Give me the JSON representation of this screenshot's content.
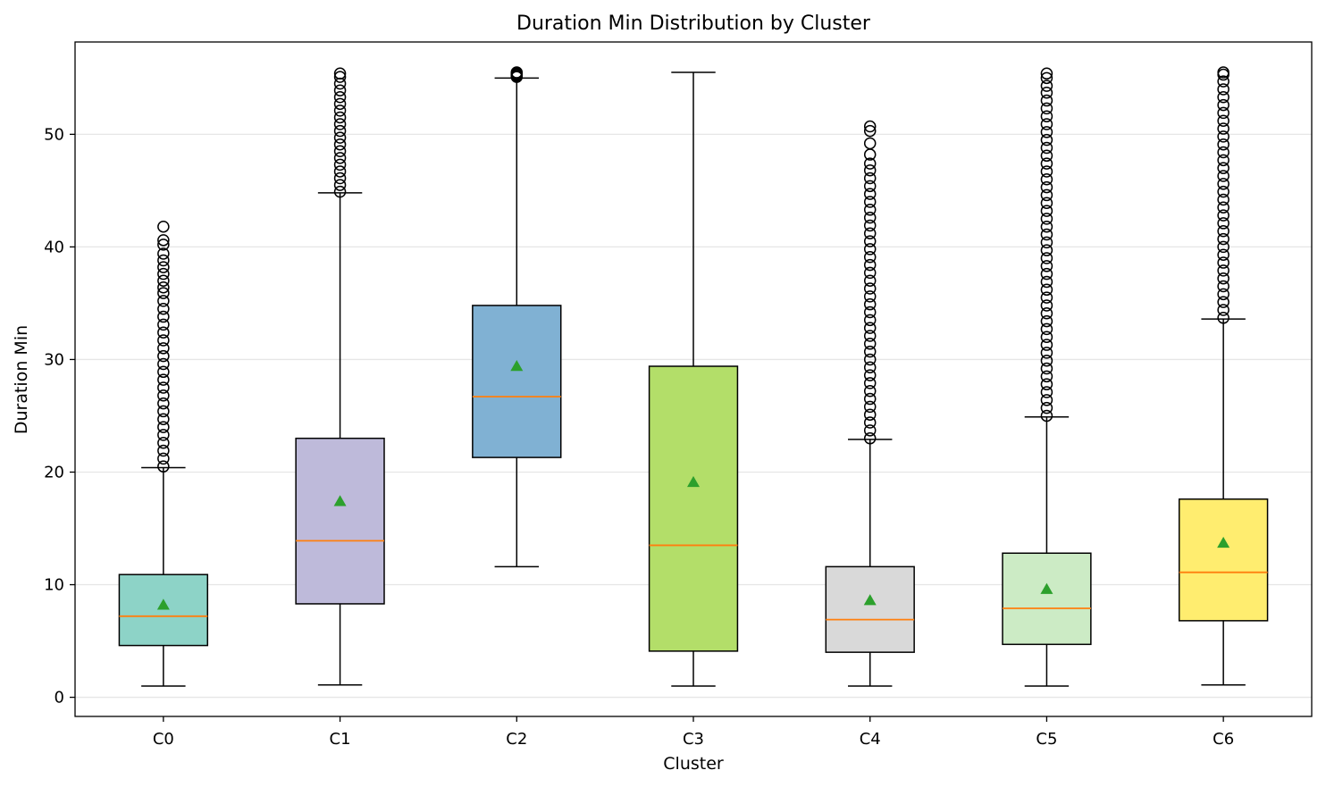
{
  "chart_data": {
    "type": "boxplot",
    "title": "Duration Min Distribution by Cluster",
    "xlabel": "Cluster",
    "ylabel": "Duration Min",
    "ylim": [
      -1.7,
      58.2
    ],
    "yticks": [
      0,
      10,
      20,
      30,
      40,
      50
    ],
    "grid": "horizontal",
    "categories": [
      "C0",
      "C1",
      "C2",
      "C3",
      "C4",
      "C5",
      "C6"
    ],
    "colors": {
      "median": "#ff7f0e",
      "mean": "#2ca02c",
      "grid": "#e6e6e6",
      "frame": "#000000"
    },
    "boxes": [
      {
        "name": "C0",
        "color": "#8dd3c7",
        "whislo": 1.0,
        "q1": 4.6,
        "med": 7.2,
        "q3": 10.9,
        "whishi": 20.4,
        "mean": 8.2,
        "fliers": [
          20.5,
          21.2,
          21.9,
          22.6,
          23.3,
          24.0,
          24.7,
          25.4,
          26.1,
          26.8,
          27.5,
          28.2,
          28.9,
          29.6,
          30.3,
          31.0,
          31.7,
          32.4,
          33.1,
          33.8,
          34.5,
          35.2,
          35.9,
          36.4,
          37.0,
          37.6,
          38.2,
          38.8,
          39.4,
          40.2,
          40.6,
          41.8
        ]
      },
      {
        "name": "C1",
        "color": "#bebada",
        "whislo": 1.1,
        "q1": 8.3,
        "med": 13.9,
        "q3": 23.0,
        "whishi": 44.8,
        "mean": 17.4,
        "fliers": [
          44.9,
          45.5,
          46.1,
          46.7,
          47.3,
          47.9,
          48.5,
          49.1,
          49.7,
          50.3,
          50.9,
          51.5,
          52.1,
          52.7,
          53.3,
          53.9,
          54.5,
          55.1,
          55.4
        ]
      },
      {
        "name": "C2",
        "color": "#80b1d3",
        "whislo": 11.6,
        "q1": 21.3,
        "med": 26.7,
        "q3": 34.8,
        "whishi": 55.0,
        "mean": 29.4,
        "fliers": [
          55.1,
          55.2,
          55.3,
          55.4,
          55.5
        ]
      },
      {
        "name": "C3",
        "color": "#b3de69",
        "whislo": 1.0,
        "q1": 4.1,
        "med": 13.5,
        "q3": 29.4,
        "whishi": 55.5,
        "mean": 19.1,
        "fliers": []
      },
      {
        "name": "C4",
        "color": "#d9d9d9",
        "whislo": 1.0,
        "q1": 4.0,
        "med": 6.9,
        "q3": 11.6,
        "whishi": 22.9,
        "mean": 8.6,
        "fliers": [
          23.0,
          23.7,
          24.4,
          25.1,
          25.8,
          26.5,
          27.2,
          27.9,
          28.6,
          29.3,
          30.0,
          30.7,
          31.4,
          32.1,
          32.8,
          33.5,
          34.2,
          34.9,
          35.6,
          36.3,
          37.0,
          37.7,
          38.4,
          39.1,
          39.8,
          40.5,
          41.2,
          41.9,
          42.6,
          43.3,
          44.0,
          44.7,
          45.4,
          46.1,
          46.8,
          47.4,
          48.2,
          49.2,
          50.3,
          50.7
        ]
      },
      {
        "name": "C5",
        "color": "#ccebc5",
        "whislo": 1.0,
        "q1": 4.7,
        "med": 7.9,
        "q3": 12.8,
        "whishi": 24.9,
        "mean": 9.6,
        "fliers": [
          25.0,
          25.7,
          26.4,
          27.1,
          27.8,
          28.5,
          29.2,
          29.9,
          30.6,
          31.3,
          32.0,
          32.7,
          33.4,
          34.1,
          34.8,
          35.5,
          36.2,
          36.9,
          37.6,
          38.3,
          39.0,
          39.7,
          40.4,
          41.1,
          41.8,
          42.5,
          43.2,
          43.9,
          44.6,
          45.3,
          46.0,
          46.7,
          47.4,
          48.1,
          48.8,
          49.5,
          50.2,
          50.9,
          51.6,
          52.3,
          53.0,
          53.7,
          54.3,
          55.0,
          55.4
        ]
      },
      {
        "name": "C6",
        "color": "#ffed6f",
        "whislo": 1.1,
        "q1": 6.8,
        "med": 11.1,
        "q3": 17.6,
        "whishi": 33.6,
        "mean": 13.7,
        "fliers": [
          33.7,
          34.4,
          35.1,
          35.8,
          36.5,
          37.2,
          37.9,
          38.6,
          39.3,
          40.0,
          40.7,
          41.4,
          42.1,
          42.8,
          43.5,
          44.2,
          44.9,
          45.6,
          46.3,
          47.0,
          47.7,
          48.4,
          49.1,
          49.8,
          50.5,
          51.2,
          51.9,
          52.6,
          53.3,
          54.0,
          54.7,
          55.3,
          55.5
        ]
      }
    ]
  }
}
